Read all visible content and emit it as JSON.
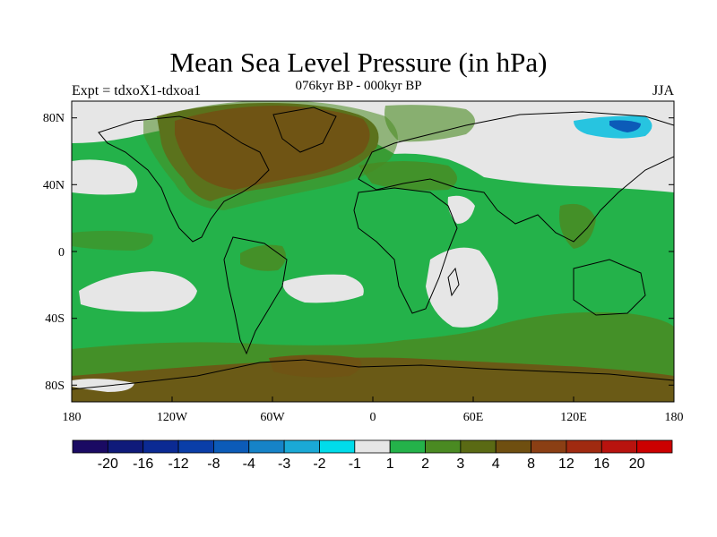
{
  "title": "Mean Sea Level Pressure (in hPa)",
  "subtitle": "076kyr BP - 000kyr BP",
  "left_label": "Expt = tdxoX1-tdxoa1",
  "right_label": "JJA",
  "lat_labels": [
    "80N",
    "40N",
    "0",
    "40S",
    "80S"
  ],
  "lon_labels": [
    "180",
    "120W",
    "60W",
    "0",
    "60E",
    "120E",
    "180"
  ],
  "colorbar": {
    "colors": [
      "#1a0a63",
      "#0f1a7a",
      "#0b2a93",
      "#0a3ea8",
      "#0c5bb8",
      "#1683c8",
      "#1aa9d6",
      "#00dcea",
      "#e6e6e6",
      "#24b24a",
      "#4a8a22",
      "#5a6a14",
      "#6f4f10",
      "#8b3f14",
      "#a02a10",
      "#b8130e",
      "#cc0000"
    ],
    "labels": [
      "-20",
      "-16",
      "-12",
      "-8",
      "-4",
      "-3",
      "-2",
      "-1",
      "1",
      "2",
      "3",
      "4",
      "8",
      "12",
      "16",
      "20"
    ]
  },
  "colors": {
    "grey": "#e6e6e6",
    "green": "#24b24a",
    "olive": "#4a8a22",
    "brown": "#6f5414",
    "cyan": "#27c4e0",
    "blue": "#0c5bb8"
  }
}
